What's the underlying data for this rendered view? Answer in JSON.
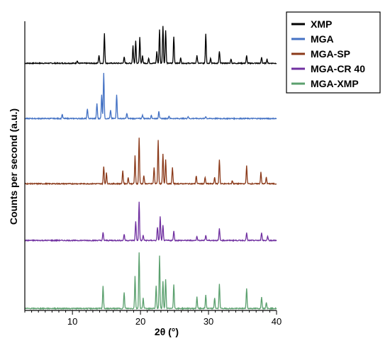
{
  "chart_data": {
    "type": "line",
    "title": "",
    "xlabel": "2θ (°)",
    "ylabel": "Counts per second (a.u.)",
    "xlim": [
      3,
      40
    ],
    "xticks": [
      10,
      20,
      30,
      40
    ],
    "x_tick_labels": [
      "10",
      "20",
      "30",
      "40"
    ],
    "y_tick_labels_shown": false,
    "grid": false,
    "legend_placement": "top-right",
    "baseline_offsets_note": "stacked diffractograms, vertically offset",
    "series": [
      {
        "name": "XMP",
        "color": "#000000",
        "baseline": 4.0,
        "peaks": [
          [
            10.7,
            0.05
          ],
          [
            13.9,
            0.15
          ],
          [
            14.7,
            0.55
          ],
          [
            17.6,
            0.12
          ],
          [
            18.9,
            0.33
          ],
          [
            19.3,
            0.42
          ],
          [
            19.9,
            0.48
          ],
          [
            20.3,
            0.14
          ],
          [
            21.2,
            0.09
          ],
          [
            22.4,
            0.22
          ],
          [
            22.8,
            0.62
          ],
          [
            23.3,
            0.7
          ],
          [
            23.7,
            0.62
          ],
          [
            24.9,
            0.5
          ],
          [
            25.9,
            0.1
          ],
          [
            28.3,
            0.15
          ],
          [
            29.6,
            0.55
          ],
          [
            30.3,
            0.1
          ],
          [
            31.6,
            0.22
          ],
          [
            33.3,
            0.08
          ],
          [
            35.6,
            0.14
          ],
          [
            37.8,
            0.11
          ],
          [
            38.6,
            0.08
          ]
        ]
      },
      {
        "name": "MGA",
        "color": "#4472C4",
        "baseline": 3.0,
        "peaks": [
          [
            8.5,
            0.08
          ],
          [
            12.2,
            0.18
          ],
          [
            13.6,
            0.28
          ],
          [
            14.3,
            0.45
          ],
          [
            14.6,
            0.85
          ],
          [
            15.6,
            0.15
          ],
          [
            16.5,
            0.45
          ],
          [
            18.0,
            0.1
          ],
          [
            20.3,
            0.07
          ],
          [
            21.6,
            0.06
          ],
          [
            22.7,
            0.14
          ],
          [
            24.2,
            0.05
          ],
          [
            27.0,
            0.04
          ],
          [
            29.6,
            0.04
          ]
        ]
      },
      {
        "name": "MGA-SP",
        "color": "#8B3A1A",
        "baseline": 2.0,
        "peaks": [
          [
            14.6,
            0.32
          ],
          [
            15.0,
            0.2
          ],
          [
            17.4,
            0.25
          ],
          [
            18.2,
            0.12
          ],
          [
            19.2,
            0.52
          ],
          [
            19.8,
            0.85
          ],
          [
            20.5,
            0.15
          ],
          [
            22.0,
            0.3
          ],
          [
            22.6,
            0.82
          ],
          [
            23.3,
            0.55
          ],
          [
            23.7,
            0.45
          ],
          [
            24.7,
            0.3
          ],
          [
            28.2,
            0.15
          ],
          [
            29.5,
            0.12
          ],
          [
            30.9,
            0.12
          ],
          [
            31.6,
            0.45
          ],
          [
            33.5,
            0.06
          ],
          [
            35.6,
            0.33
          ],
          [
            37.7,
            0.22
          ],
          [
            38.5,
            0.12
          ]
        ]
      },
      {
        "name": "MGA-CR 40",
        "color": "#7030A0",
        "baseline": 1.0,
        "peaks": [
          [
            14.5,
            0.15
          ],
          [
            17.6,
            0.12
          ],
          [
            19.3,
            0.35
          ],
          [
            19.8,
            0.72
          ],
          [
            20.4,
            0.1
          ],
          [
            22.5,
            0.25
          ],
          [
            22.9,
            0.45
          ],
          [
            23.3,
            0.28
          ],
          [
            24.9,
            0.18
          ],
          [
            28.3,
            0.08
          ],
          [
            29.6,
            0.1
          ],
          [
            31.6,
            0.22
          ],
          [
            35.6,
            0.14
          ],
          [
            37.8,
            0.15
          ],
          [
            38.7,
            0.08
          ]
        ]
      },
      {
        "name": "MGA-XMP",
        "color": "#5BA06E",
        "baseline": 0.0,
        "peaks": [
          [
            14.5,
            0.42
          ],
          [
            17.6,
            0.3
          ],
          [
            19.2,
            0.6
          ],
          [
            19.8,
            1.05
          ],
          [
            20.4,
            0.2
          ],
          [
            22.3,
            0.42
          ],
          [
            22.8,
            0.98
          ],
          [
            23.3,
            0.5
          ],
          [
            23.7,
            0.55
          ],
          [
            24.9,
            0.45
          ],
          [
            28.3,
            0.22
          ],
          [
            29.6,
            0.25
          ],
          [
            30.9,
            0.2
          ],
          [
            31.6,
            0.45
          ],
          [
            35.6,
            0.38
          ],
          [
            37.8,
            0.22
          ],
          [
            38.5,
            0.12
          ]
        ]
      }
    ]
  }
}
